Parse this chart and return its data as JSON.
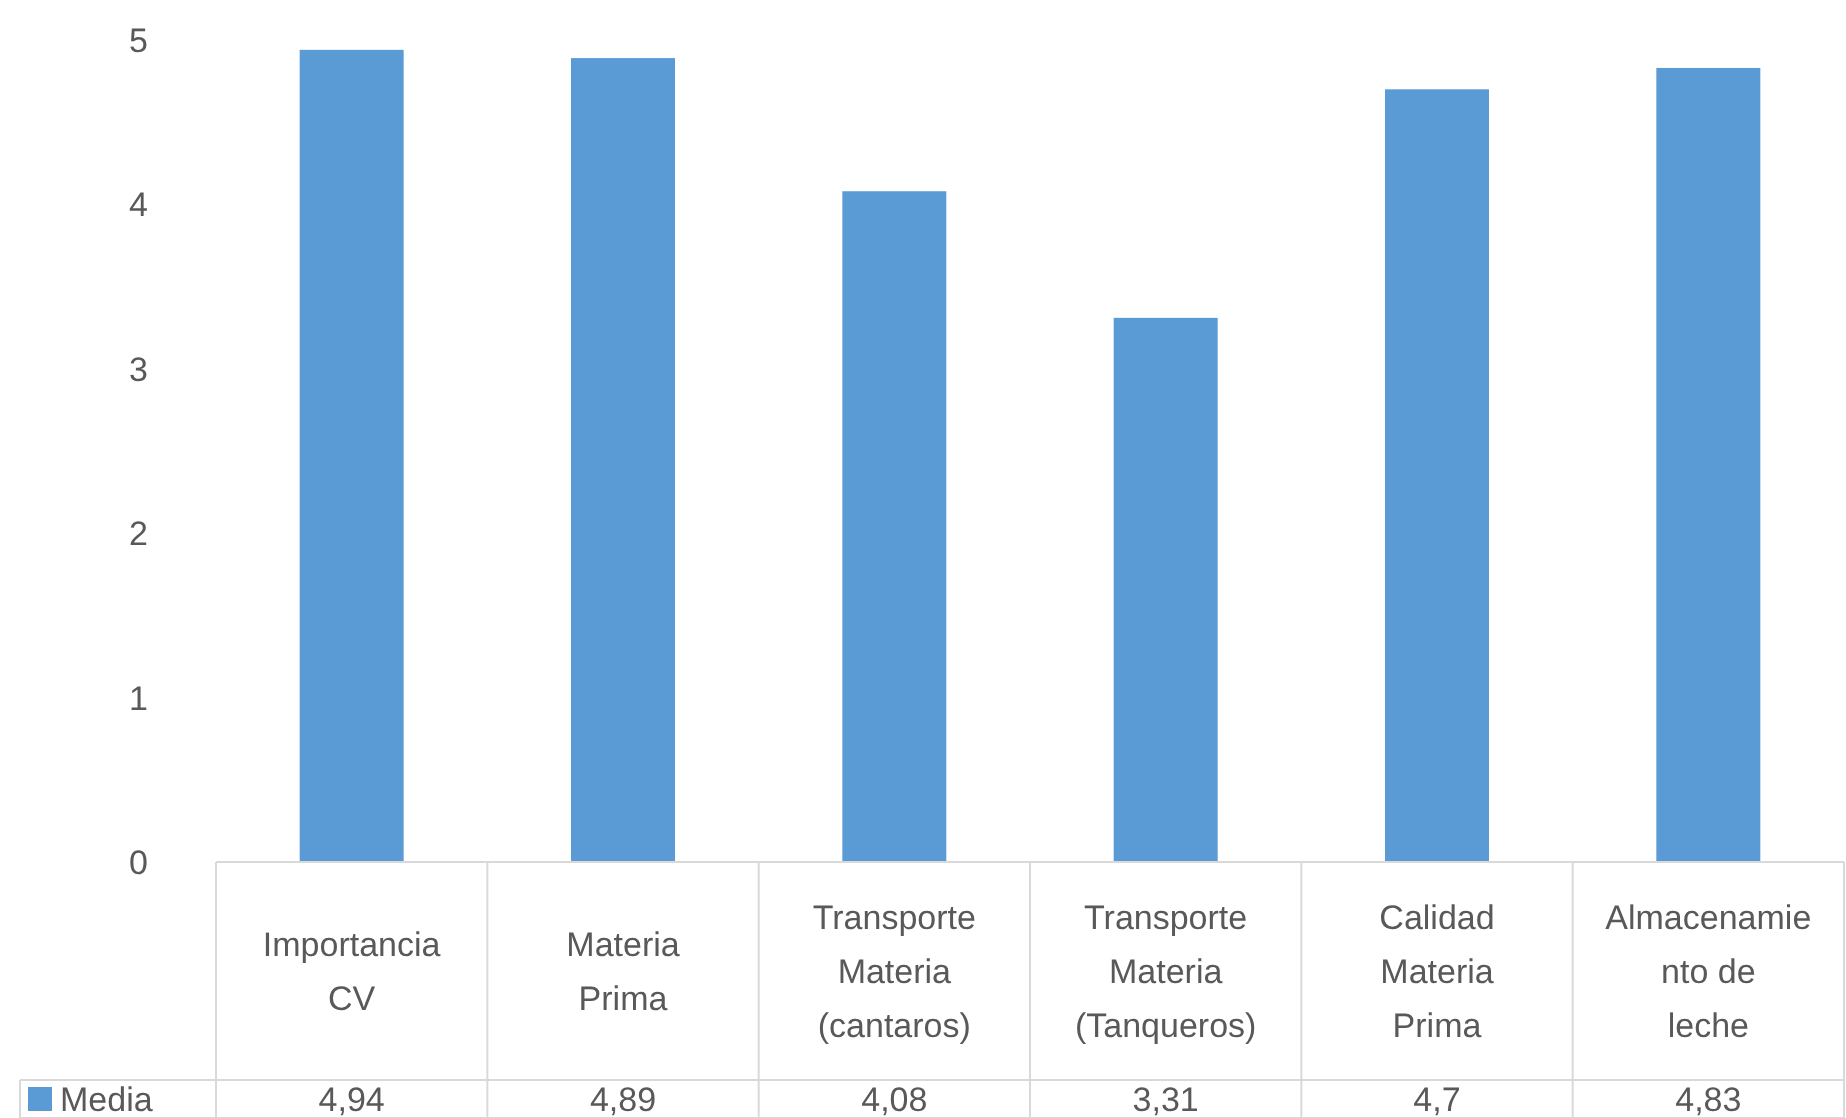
{
  "chart_data": {
    "type": "bar",
    "categories": [
      "Importancia CV",
      "Materia Prima",
      "Transporte Materia (cantaros)",
      "Transporte Materia (Tanqueros)",
      "Calidad Materia Prima",
      "Almacenamiento de leche"
    ],
    "series": [
      {
        "name": "Media",
        "color": "#5b9bd5",
        "values": [
          4.94,
          4.89,
          4.08,
          3.31,
          4.7,
          4.83
        ],
        "value_labels": [
          "4,94",
          "4,89",
          "4,08",
          "3,31",
          "4,7",
          "4,83"
        ]
      }
    ],
    "ylim": [
      0,
      5
    ],
    "yticks": [
      0,
      1,
      2,
      3,
      4,
      5
    ],
    "grid": false,
    "legend": "bottom"
  }
}
